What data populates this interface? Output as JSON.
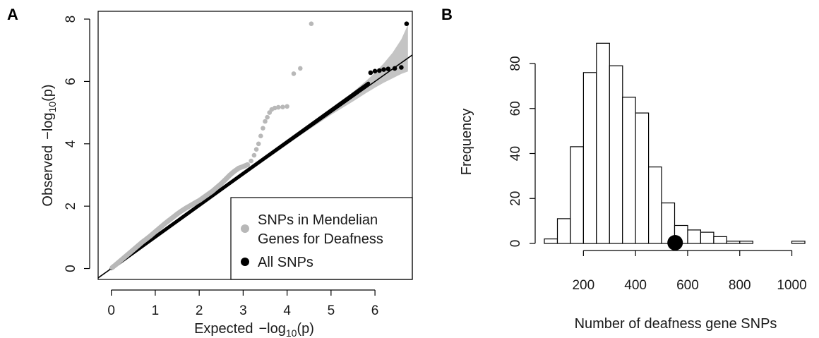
{
  "chart_data": [
    {
      "panel": "A",
      "type": "scatter",
      "xlabel": "Expected",
      "ylabel": "Observed",
      "log_symbol": "log",
      "log_base": "10",
      "log_arg": "(p)",
      "minus": "−",
      "xlim": [
        -0.3,
        6.85
      ],
      "ylim": [
        -0.35,
        8.25
      ],
      "x_ticks": [
        0,
        1,
        2,
        3,
        4,
        5,
        6
      ],
      "y_ticks": [
        0,
        2,
        4,
        6,
        8
      ],
      "reference_line": {
        "slope": 1,
        "intercept": 0
      },
      "confidence_band": {
        "x": [
          0,
          2,
          3,
          4,
          4.5,
          5,
          5.5,
          5.8,
          6.0,
          6.2,
          6.4,
          6.6,
          6.75
        ],
        "lower": [
          0,
          2,
          3,
          3.99,
          4.46,
          4.93,
          5.36,
          5.63,
          5.8,
          5.96,
          6.1,
          6.24,
          6.32
        ],
        "upper": [
          0,
          2,
          3,
          4.02,
          4.55,
          5.08,
          5.66,
          6.02,
          6.28,
          6.58,
          6.92,
          7.35,
          7.82
        ]
      },
      "legend": {
        "position": "bottom-right",
        "entries": [
          {
            "label_lines": [
              "SNPs in Mendelian",
              "Genes for Deafness"
            ],
            "color": "#b8b8b8"
          },
          {
            "label_lines": [
              "All SNPs"
            ],
            "color": "#000000"
          }
        ]
      },
      "series": [
        {
          "name": "SNPs in Mendelian Genes for Deafness",
          "color": "#b8b8b8",
          "points": [
            [
              0.02,
              0.03
            ],
            [
              0.1,
              0.12
            ],
            [
              0.2,
              0.24
            ],
            [
              0.3,
              0.36
            ],
            [
              0.4,
              0.48
            ],
            [
              0.5,
              0.6
            ],
            [
              0.6,
              0.72
            ],
            [
              0.7,
              0.84
            ],
            [
              0.8,
              0.95
            ],
            [
              0.9,
              1.06
            ],
            [
              1.0,
              1.18
            ],
            [
              1.1,
              1.3
            ],
            [
              1.2,
              1.42
            ],
            [
              1.3,
              1.53
            ],
            [
              1.4,
              1.64
            ],
            [
              1.5,
              1.75
            ],
            [
              1.6,
              1.85
            ],
            [
              1.7,
              1.94
            ],
            [
              1.8,
              2.02
            ],
            [
              1.9,
              2.1
            ],
            [
              2.0,
              2.18
            ],
            [
              2.1,
              2.28
            ],
            [
              2.2,
              2.38
            ],
            [
              2.3,
              2.48
            ],
            [
              2.4,
              2.6
            ],
            [
              2.5,
              2.72
            ],
            [
              2.6,
              2.86
            ],
            [
              2.7,
              3.0
            ],
            [
              2.8,
              3.12
            ],
            [
              2.9,
              3.22
            ],
            [
              3.0,
              3.27
            ],
            [
              3.1,
              3.33
            ],
            [
              3.18,
              3.45
            ],
            [
              3.25,
              3.63
            ],
            [
              3.3,
              3.82
            ],
            [
              3.35,
              4.0
            ],
            [
              3.4,
              4.25
            ],
            [
              3.45,
              4.5
            ],
            [
              3.5,
              4.72
            ],
            [
              3.55,
              4.85
            ],
            [
              3.6,
              5.0
            ],
            [
              3.65,
              5.1
            ],
            [
              3.72,
              5.15
            ],
            [
              3.8,
              5.17
            ],
            [
              3.9,
              5.18
            ],
            [
              4.0,
              5.2
            ],
            [
              4.15,
              6.25
            ],
            [
              4.3,
              6.42
            ],
            [
              4.55,
              7.85
            ]
          ]
        },
        {
          "name": "All SNPs",
          "color": "#000000",
          "points": [
            [
              5.9,
              6.28
            ],
            [
              6.0,
              6.33
            ],
            [
              6.1,
              6.35
            ],
            [
              6.2,
              6.38
            ],
            [
              6.3,
              6.4
            ],
            [
              6.45,
              6.42
            ],
            [
              6.6,
              6.45
            ],
            [
              6.72,
              7.85
            ]
          ]
        }
      ]
    },
    {
      "panel": "B",
      "type": "bar",
      "subtype": "histogram",
      "xlabel": "Number of deafness gene SNPs",
      "ylabel": "Frequency",
      "bin_width": 50,
      "bins": [
        {
          "start": 50,
          "count": 2
        },
        {
          "start": 100,
          "count": 11
        },
        {
          "start": 150,
          "count": 43
        },
        {
          "start": 200,
          "count": 76
        },
        {
          "start": 250,
          "count": 89
        },
        {
          "start": 300,
          "count": 79
        },
        {
          "start": 350,
          "count": 65
        },
        {
          "start": 400,
          "count": 58
        },
        {
          "start": 450,
          "count": 34
        },
        {
          "start": 500,
          "count": 18
        },
        {
          "start": 550,
          "count": 8
        },
        {
          "start": 600,
          "count": 6
        },
        {
          "start": 650,
          "count": 5
        },
        {
          "start": 700,
          "count": 3
        },
        {
          "start": 750,
          "count": 1
        },
        {
          "start": 800,
          "count": 1
        },
        {
          "start": 850,
          "count": 0
        },
        {
          "start": 900,
          "count": 0
        },
        {
          "start": 950,
          "count": 0
        },
        {
          "start": 1000,
          "count": 1
        }
      ],
      "x_ticks": [
        200,
        400,
        600,
        800,
        1000
      ],
      "y_ticks": [
        0,
        20,
        40,
        60,
        80
      ],
      "xlim": [
        50,
        1050
      ],
      "ylim": [
        0,
        92
      ],
      "observed_value": 552,
      "observed_marker_color": "#000000"
    }
  ]
}
